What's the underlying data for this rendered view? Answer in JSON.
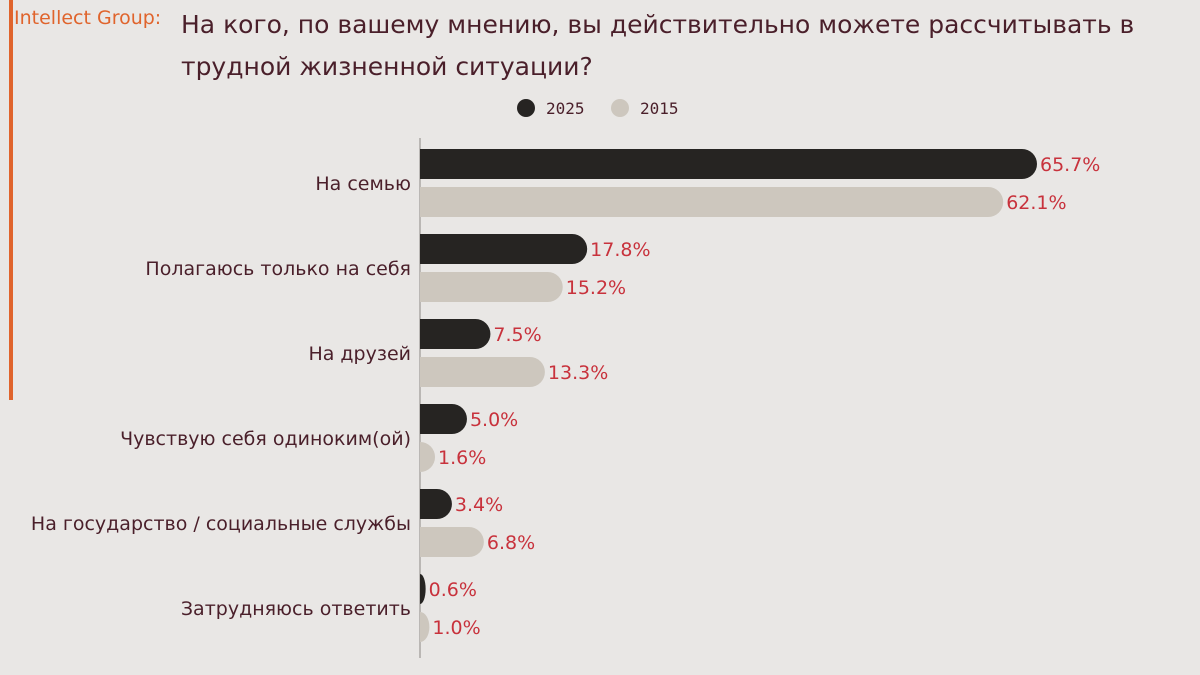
{
  "brand": "Intellect Group:",
  "colors": {
    "accent": "#e0642c",
    "series_2025": "#262422",
    "series_2015": "#cdc7be",
    "value_label": "#c8323c",
    "text": "#4a1f2a",
    "background": "#e9e7e5"
  },
  "chart_data": {
    "type": "bar",
    "orientation": "horizontal",
    "title": "На кого, по вашему мнению, вы действительно можете рассчитывать в трудной жизненной ситуации?",
    "legend_position": "top-center",
    "grid": false,
    "xlim": [
      0,
      70
    ],
    "categories": [
      "На семью",
      "Полагаюсь только на себя",
      "На друзей",
      "Чувствую себя одиноким(ой)",
      "На государство / социальные службы",
      "Затрудняюсь ответить"
    ],
    "series": [
      {
        "name": "2025",
        "color": "#262422",
        "values": [
          65.7,
          17.8,
          7.5,
          5.0,
          3.4,
          0.6
        ],
        "labels": [
          "65.7%",
          "17.8%",
          "7.5%",
          "5.0%",
          "3.4%",
          "0.6%"
        ]
      },
      {
        "name": "2015",
        "color": "#cdc7be",
        "values": [
          62.1,
          15.2,
          13.3,
          1.6,
          6.8,
          1.0
        ],
        "labels": [
          "62.1%",
          "15.2%",
          "13.3%",
          "1.6%",
          "6.8%",
          "1.0%"
        ]
      }
    ]
  }
}
